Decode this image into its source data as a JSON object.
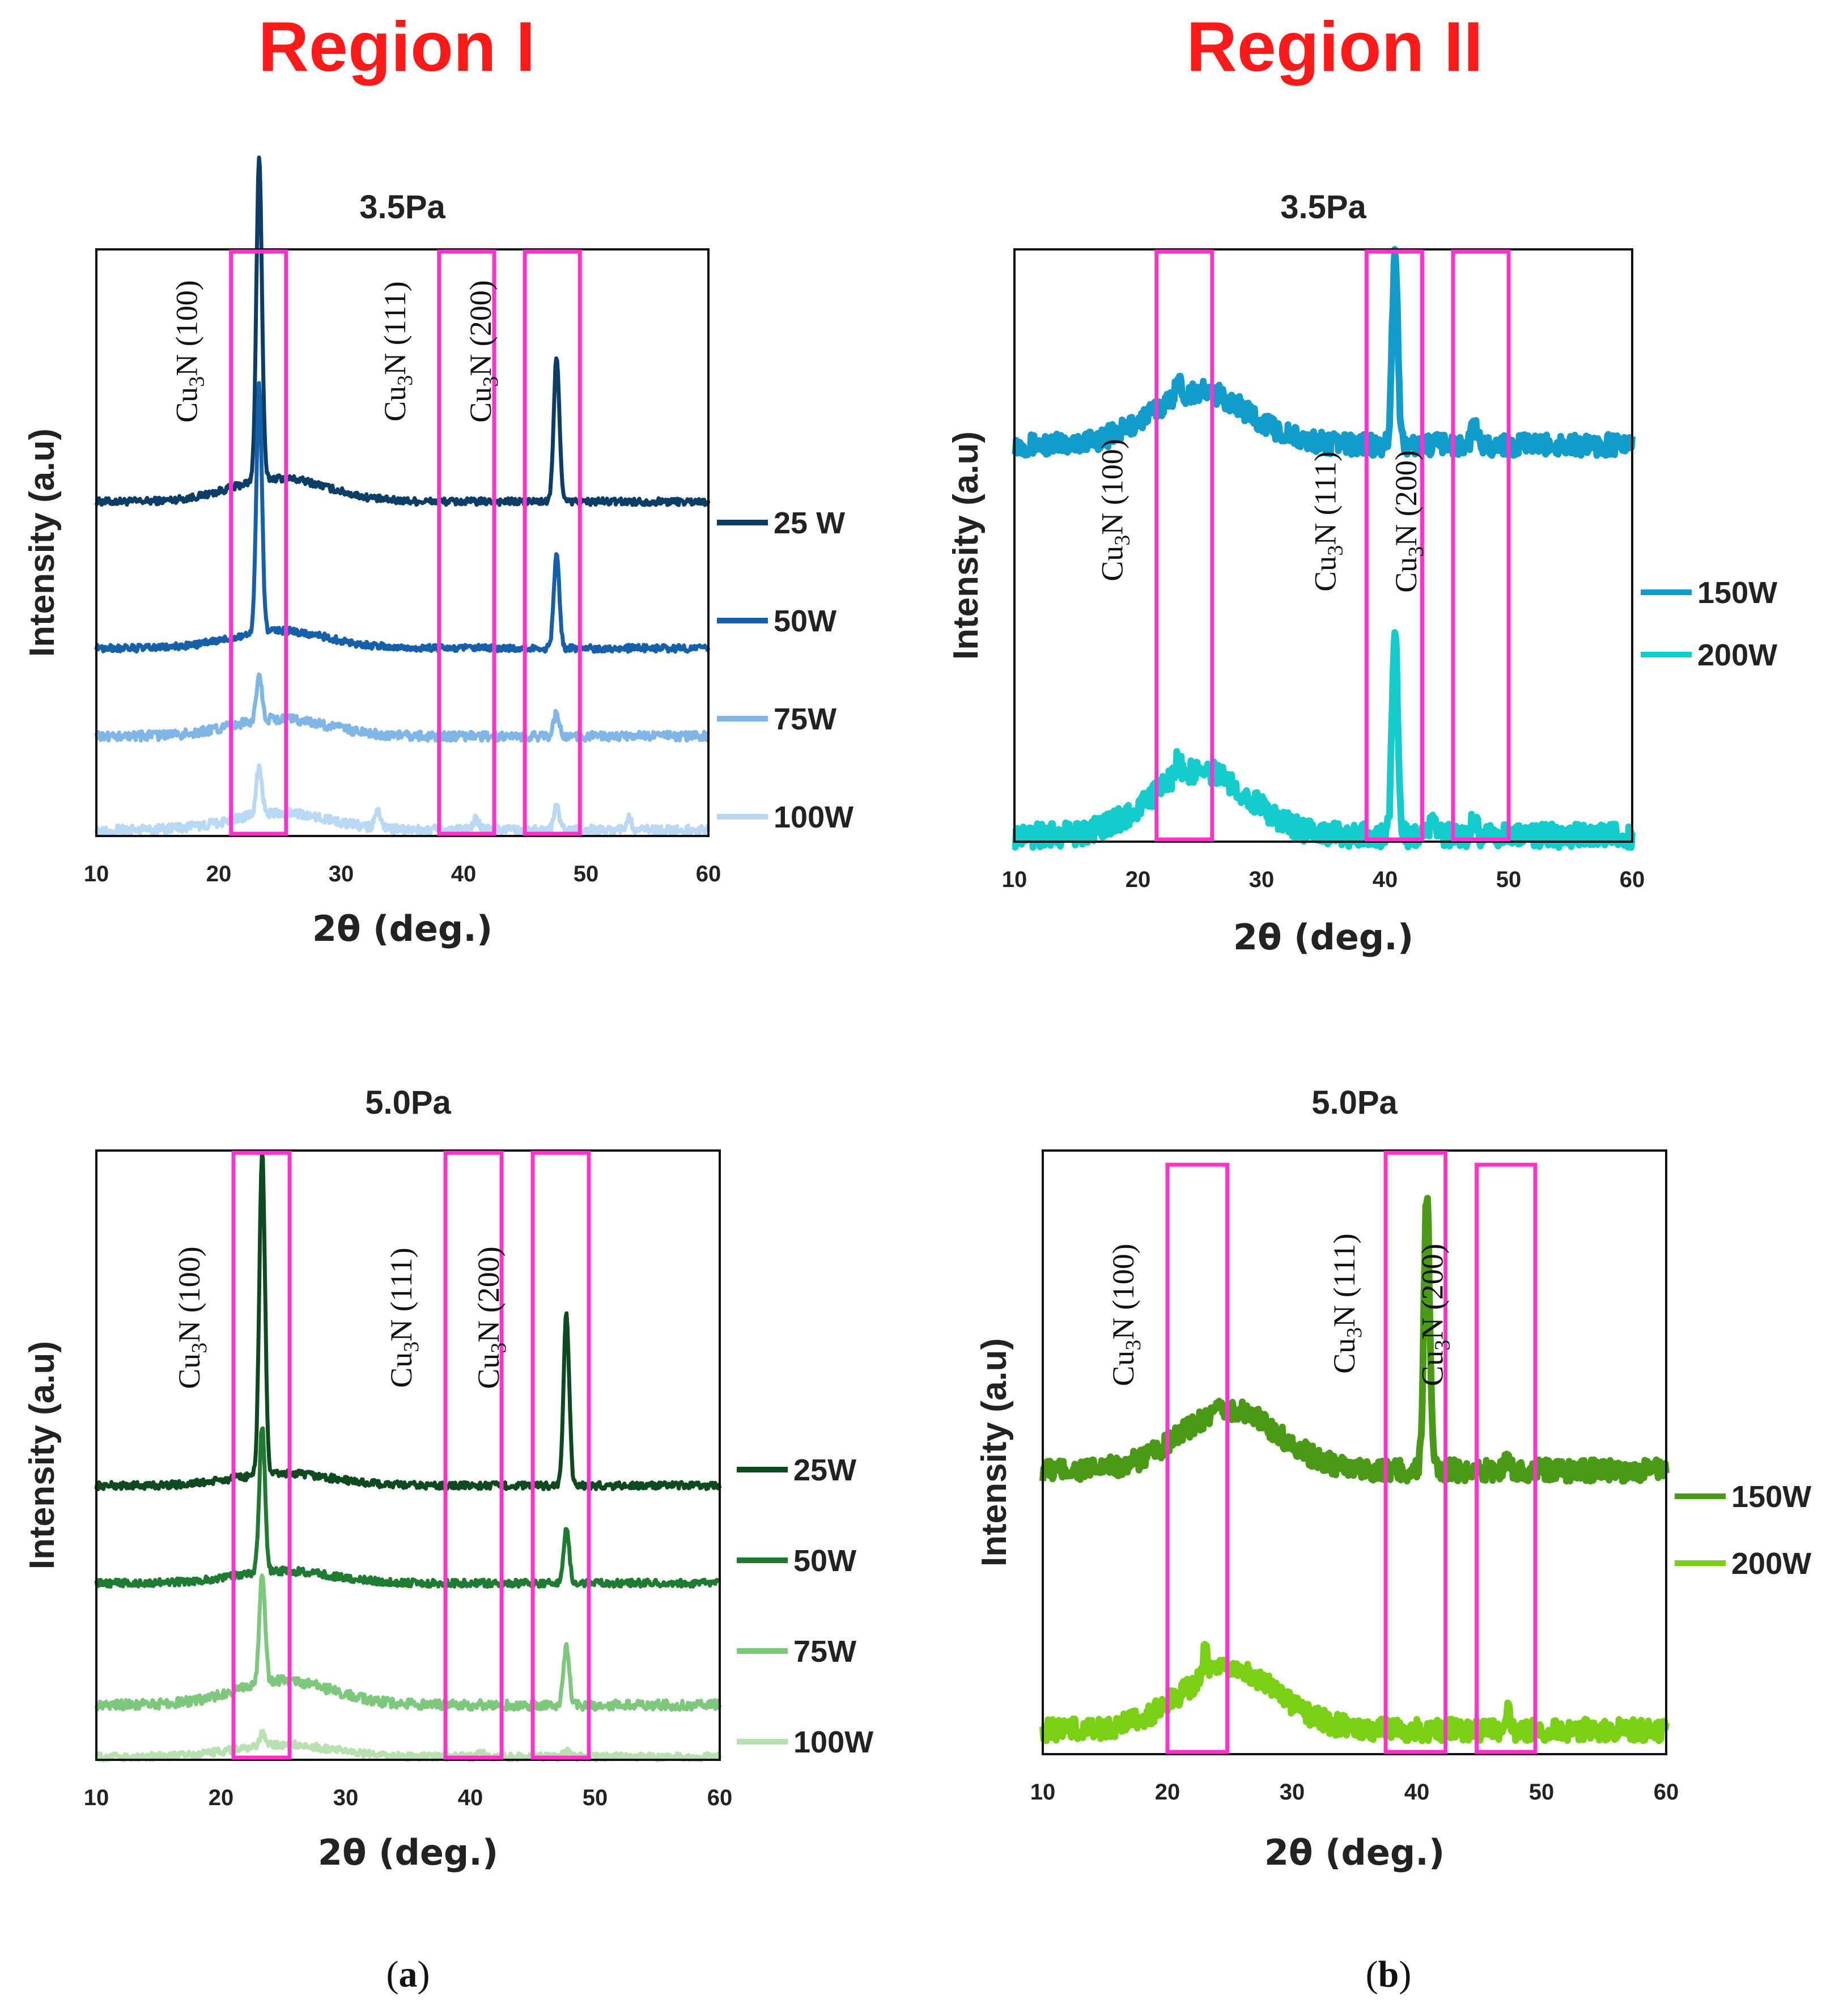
{
  "regions": {
    "left": "Region I",
    "right": "Region II"
  },
  "panel_labels": {
    "a": "a",
    "b": "b"
  },
  "colors": {
    "region_title": "#ff1a1a",
    "box": "#ff33cc",
    "blues": [
      "#0b3d66",
      "#1560a8",
      "#7fb6e6",
      "#b9d8f3"
    ],
    "cyans": [
      "#129ccc",
      "#14cccc"
    ],
    "greens_dark": [
      "#0e4a1f",
      "#1f7a32",
      "#7ec87e",
      "#b8e0b0"
    ],
    "greens_light": [
      "#4a9a18",
      "#7ad014"
    ]
  },
  "chart_data": [
    {
      "id": "a-top",
      "type": "line",
      "title": "3.5Pa",
      "xlabel": "2θ  (deg.)",
      "ylabel": "Intensity (a.u)",
      "xlim": [
        10,
        60
      ],
      "xticks": [
        10,
        20,
        30,
        40,
        50,
        60
      ],
      "peak_boxes": [
        {
          "label": "(100)",
          "x_range": [
            21,
            25.5
          ]
        },
        {
          "label": "(111)",
          "x_range": [
            38,
            42.5
          ]
        },
        {
          "label": "(200)",
          "x_range": [
            45,
            49.5
          ]
        }
      ],
      "series": [
        {
          "name": "25 W",
          "baseline": 0.57,
          "hump": 0.04,
          "peaks": [
            [
              23.3,
              0.55
            ],
            [
              47.6,
              0.25
            ]
          ],
          "noise": 0.006
        },
        {
          "name": "50W",
          "baseline": 0.32,
          "hump": 0.03,
          "peaks": [
            [
              23.3,
              0.42
            ],
            [
              47.6,
              0.16
            ]
          ],
          "noise": 0.006
        },
        {
          "name": "75W",
          "baseline": 0.17,
          "hump": 0.03,
          "peaks": [
            [
              23.3,
              0.08
            ],
            [
              47.6,
              0.04
            ]
          ],
          "noise": 0.008
        },
        {
          "name": "100W",
          "baseline": 0.01,
          "hump": 0.03,
          "peaks": [
            [
              23.3,
              0.08
            ],
            [
              33.0,
              0.03
            ],
            [
              41.0,
              0.02
            ],
            [
              47.6,
              0.04
            ],
            [
              53.5,
              0.02
            ]
          ],
          "noise": 0.008
        }
      ]
    },
    {
      "id": "b-top",
      "type": "line",
      "title": "3.5Pa",
      "xlabel": "2θ  (deg.)",
      "ylabel": "Intensity (a.u)",
      "xlim": [
        10,
        60
      ],
      "xticks": [
        10,
        20,
        30,
        40,
        50,
        60
      ],
      "peak_boxes": [
        {
          "label": "(100)",
          "x_range": [
            21.5,
            26
          ]
        },
        {
          "label": "(111)",
          "x_range": [
            38.5,
            43
          ]
        },
        {
          "label": "(200)",
          "x_range": [
            45.5,
            50
          ]
        }
      ],
      "series": [
        {
          "name": "150W",
          "baseline": 0.67,
          "hump": 0.09,
          "peaks": [
            [
              23.2,
              0.03
            ],
            [
              40.8,
              0.32
            ],
            [
              47.2,
              0.03
            ]
          ],
          "noise": 0.018
        },
        {
          "name": "200W",
          "baseline": 0.01,
          "hump": 0.11,
          "peaks": [
            [
              23.2,
              0.03
            ],
            [
              40.8,
              0.35
            ],
            [
              43.8,
              0.03
            ],
            [
              47.2,
              0.03
            ]
          ],
          "noise": 0.02
        }
      ]
    },
    {
      "id": "a-bottom",
      "type": "line",
      "title": "5.0Pa",
      "xlabel": "2θ  (deg.)",
      "ylabel": "Intensity (a.u)",
      "xlim": [
        10,
        60
      ],
      "xticks": [
        10,
        20,
        30,
        40,
        50,
        60
      ],
      "peak_boxes": [
        {
          "label": "(100)",
          "x_range": [
            21,
            25.5
          ]
        },
        {
          "label": "(111)",
          "x_range": [
            38,
            42.5
          ]
        },
        {
          "label": "(200)",
          "x_range": [
            45,
            49.5
          ]
        }
      ],
      "series": [
        {
          "name": "25W",
          "baseline": 0.45,
          "hump": 0.02,
          "peaks": [
            [
              23.3,
              0.53
            ],
            [
              47.7,
              0.28
            ]
          ],
          "noise": 0.006
        },
        {
          "name": "50W",
          "baseline": 0.29,
          "hump": 0.02,
          "peaks": [
            [
              23.3,
              0.24
            ],
            [
              47.7,
              0.09
            ]
          ],
          "noise": 0.006
        },
        {
          "name": "75W",
          "baseline": 0.09,
          "hump": 0.04,
          "peaks": [
            [
              23.3,
              0.18
            ],
            [
              47.7,
              0.1
            ]
          ],
          "noise": 0.008
        },
        {
          "name": "100W",
          "baseline": 0.005,
          "hump": 0.02,
          "peaks": [
            [
              23.3,
              0.02
            ],
            [
              40.8,
              0.01
            ],
            [
              47.7,
              0.01
            ]
          ],
          "noise": 0.006
        }
      ]
    },
    {
      "id": "b-bottom",
      "type": "line",
      "title": "5.0Pa",
      "xlabel": "2θ  (deg.)",
      "ylabel": "Intensity (a.u)",
      "xlim": [
        10,
        60
      ],
      "xticks": [
        10,
        20,
        30,
        40,
        50,
        60
      ],
      "peak_boxes": [
        {
          "label": "(100)",
          "x_range": [
            20,
            24.8
          ]
        },
        {
          "label": "(111)",
          "x_range": [
            37.5,
            42.3
          ]
        },
        {
          "label": "(200)",
          "x_range": [
            44.8,
            49.5
          ]
        }
      ],
      "series": [
        {
          "name": "150W",
          "baseline": 0.47,
          "hump": 0.1,
          "peaks": [
            [
              40.8,
              0.46
            ],
            [
              47.3,
              0.02
            ]
          ],
          "noise": 0.018
        },
        {
          "name": "200W",
          "baseline": 0.04,
          "hump": 0.1,
          "peaks": [
            [
              23.0,
              0.04
            ],
            [
              47.3,
              0.03
            ]
          ],
          "noise": 0.018
        }
      ]
    }
  ],
  "peak_formula": {
    "base": "Cu",
    "sub": "3",
    "tail": "N "
  }
}
